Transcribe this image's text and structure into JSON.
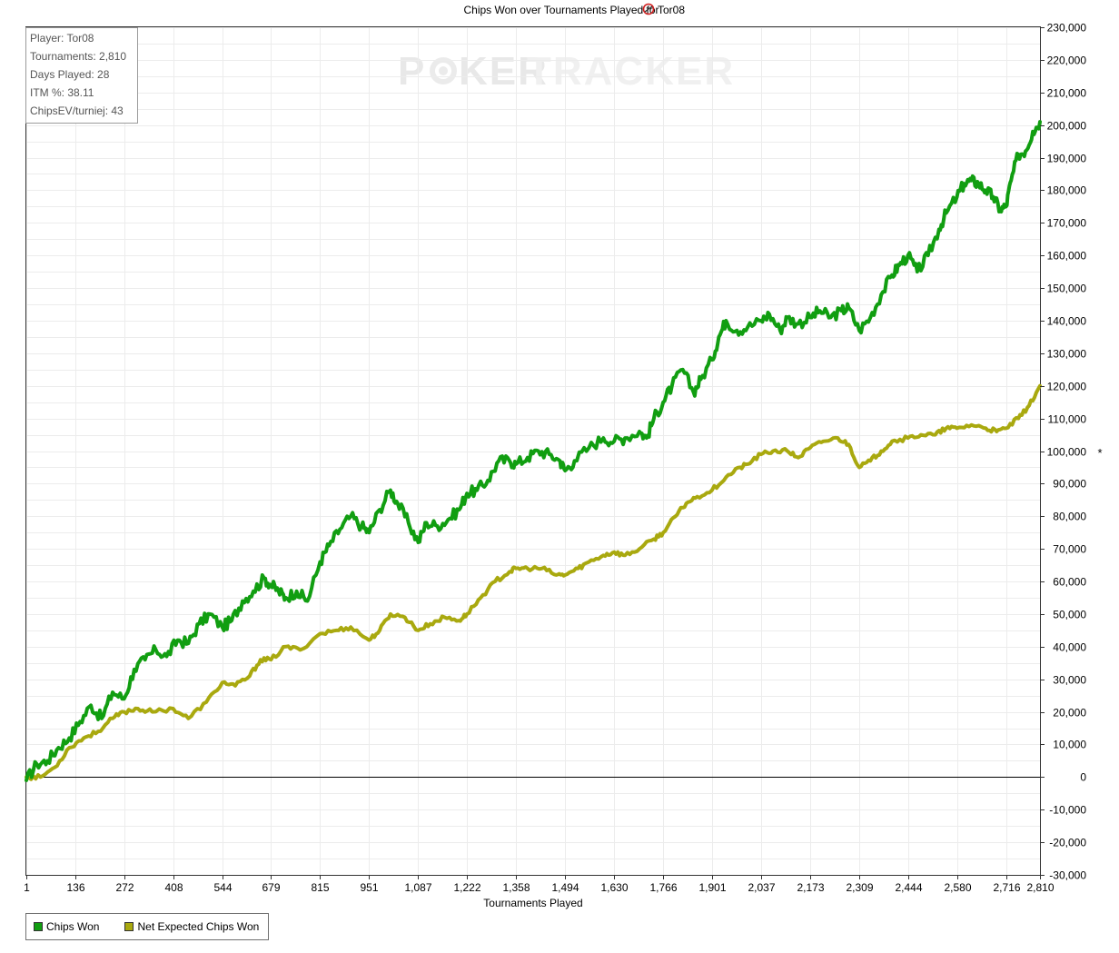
{
  "title": {
    "text_before": "Chips Won over Tournaments Played for",
    "player": "Tor08"
  },
  "watermark": {
    "part1": "P",
    "part2": "KER",
    "part3": "TRACKER"
  },
  "stats": {
    "player": "Player: Tor08",
    "tournaments": "Tournaments: 2,810",
    "days_played": "Days Played: 28",
    "itm": "ITM %: 38.11",
    "chipsev": "ChipsEV/turniej: 43"
  },
  "colors": {
    "chips_won": "#119e11",
    "net_expected": "#a9a90f",
    "grid": "#ececec",
    "zero_line": "#000000"
  },
  "icons": {
    "player_site": "site-logo-icon",
    "y_axis_marker": "asterisk-icon"
  },
  "legend": {
    "chips_won": "Chips Won",
    "net_expected": "Net Expected Chips Won"
  },
  "chart_data": {
    "type": "line",
    "title": "Chips Won over Tournaments Played for Tor08",
    "xlabel": "Tournaments Played",
    "ylabel": "",
    "y_axis_symbol": "*",
    "xlim": [
      1,
      2810
    ],
    "ylim": [
      -30000,
      230000
    ],
    "x_ticks": [
      1,
      136,
      272,
      408,
      544,
      679,
      815,
      951,
      1087,
      1222,
      1358,
      1494,
      1630,
      1766,
      1901,
      2037,
      2173,
      2309,
      2444,
      2580,
      2716,
      2810
    ],
    "x_tick_labels": [
      "1",
      "136",
      "272",
      "408",
      "544",
      "679",
      "815",
      "951",
      "1,087",
      "1,222",
      "1,358",
      "1,494",
      "1,630",
      "1,766",
      "1,901",
      "2,037",
      "2,173",
      "2,309",
      "2,444",
      "2,580",
      "2,716",
      "2,810"
    ],
    "y_ticks": [
      -30000,
      -20000,
      -10000,
      0,
      10000,
      20000,
      30000,
      40000,
      50000,
      60000,
      70000,
      80000,
      90000,
      100000,
      110000,
      120000,
      130000,
      140000,
      150000,
      160000,
      170000,
      180000,
      190000,
      200000,
      210000,
      220000,
      230000
    ],
    "y_tick_labels": [
      "-30,000",
      "-20,000",
      "-10,000",
      "0",
      "10,000",
      "20,000",
      "30,000",
      "40,000",
      "50,000",
      "60,000",
      "70,000",
      "80,000",
      "90,000",
      "100,000",
      "110,000",
      "120,000",
      "130,000",
      "140,000",
      "150,000",
      "160,000",
      "170,000",
      "180,000",
      "190,000",
      "200,000",
      "210,000",
      "220,000",
      "230,000"
    ],
    "grid": true,
    "legend_position": "bottom-left",
    "series": [
      {
        "name": "Chips Won",
        "x": [
          1,
          30,
          60,
          90,
          120,
          150,
          180,
          210,
          240,
          272,
          300,
          330,
          360,
          390,
          420,
          450,
          480,
          510,
          544,
          570,
          600,
          630,
          660,
          679,
          700,
          720,
          750,
          780,
          815,
          840,
          870,
          900,
          930,
          951,
          980,
          1010,
          1030,
          1060,
          1087,
          1110,
          1140,
          1170,
          1200,
          1222,
          1250,
          1280,
          1310,
          1340,
          1358,
          1390,
          1420,
          1450,
          1480,
          1494,
          1520,
          1560,
          1600,
          1630,
          1660,
          1700,
          1720,
          1740,
          1766,
          1790,
          1820,
          1850,
          1870,
          1901,
          1920,
          1940,
          1970,
          2000,
          2037,
          2060,
          2090,
          2110,
          2140,
          2173,
          2200,
          2230,
          2260,
          2280,
          2309,
          2340,
          2370,
          2400,
          2420,
          2444,
          2470,
          2500,
          2530,
          2550,
          2580,
          2600,
          2620,
          2640,
          2660,
          2680,
          2700,
          2716,
          2730,
          2750,
          2770,
          2790,
          2810
        ],
        "values": [
          -1000,
          4000,
          5000,
          9000,
          12000,
          17000,
          22000,
          18000,
          26000,
          24000,
          33000,
          36000,
          39000,
          37000,
          42000,
          41000,
          47000,
          50000,
          46000,
          48000,
          54000,
          57000,
          61000,
          59000,
          57000,
          55000,
          57000,
          54000,
          66000,
          71000,
          76000,
          80000,
          77000,
          75000,
          82000,
          88000,
          84000,
          78000,
          72000,
          78000,
          77000,
          79000,
          82000,
          87000,
          88000,
          91000,
          97000,
          97000,
          96000,
          98000,
          100000,
          99000,
          97000,
          94000,
          97000,
          101000,
          104000,
          103000,
          104000,
          106000,
          104000,
          110000,
          115000,
          120000,
          125000,
          118000,
          122000,
          128000,
          135000,
          140000,
          137000,
          138000,
          140000,
          142000,
          137000,
          141000,
          139000,
          141000,
          143000,
          141000,
          143000,
          144000,
          137000,
          141000,
          148000,
          154000,
          157000,
          160000,
          155000,
          160000,
          168000,
          173000,
          178000,
          182000,
          183000,
          182000,
          180000,
          178000,
          174000,
          175000,
          183000,
          191000,
          192000,
          198000,
          201000
        ]
      },
      {
        "name": "Net Expected Chips Won",
        "x": [
          1,
          40,
          80,
          120,
          160,
          200,
          240,
          272,
          310,
          350,
          408,
          450,
          500,
          544,
          580,
          620,
          650,
          679,
          720,
          760,
          815,
          860,
          900,
          951,
          980,
          1010,
          1050,
          1087,
          1120,
          1160,
          1200,
          1222,
          1260,
          1300,
          1340,
          1358,
          1390,
          1430,
          1470,
          1494,
          1530,
          1560,
          1600,
          1630,
          1660,
          1700,
          1740,
          1766,
          1800,
          1830,
          1860,
          1901,
          1940,
          1980,
          2000,
          2037,
          2070,
          2110,
          2140,
          2173,
          2210,
          2250,
          2280,
          2309,
          2340,
          2370,
          2400,
          2444,
          2480,
          2520,
          2550,
          2580,
          2620,
          2660,
          2690,
          2716,
          2750,
          2780,
          2810
        ],
        "values": [
          0,
          0,
          3000,
          9000,
          12000,
          14000,
          18000,
          20000,
          21000,
          20000,
          21000,
          18000,
          23000,
          29000,
          28000,
          31000,
          36000,
          36000,
          40000,
          39000,
          44000,
          45000,
          46000,
          42000,
          45000,
          50000,
          49000,
          45000,
          47000,
          49000,
          48000,
          50000,
          55000,
          60000,
          63000,
          64000,
          64000,
          64000,
          62000,
          62000,
          64000,
          66000,
          68000,
          69000,
          68000,
          70000,
          73000,
          75000,
          80000,
          84000,
          86000,
          88000,
          92000,
          95000,
          96000,
          99000,
          100000,
          100000,
          98000,
          101000,
          103000,
          104000,
          102000,
          95000,
          97000,
          100000,
          103000,
          104000,
          105000,
          105000,
          107000,
          107000,
          108000,
          107000,
          106000,
          107000,
          110000,
          114000,
          120000
        ]
      }
    ]
  }
}
